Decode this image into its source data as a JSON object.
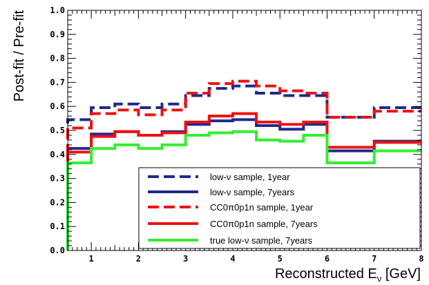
{
  "chart_data": {
    "type": "line",
    "title": "",
    "xlabel": "Reconstructed E",
    "xlabel_sub": "ν",
    "xlabel_unit": " [GeV]",
    "ylabel": "Post-fit / Pre-fit",
    "xlim": [
      0.5,
      8
    ],
    "ylim": [
      0.0,
      1.0
    ],
    "x_ticks": [
      "1",
      "2",
      "3",
      "4",
      "5",
      "6",
      "7",
      "8"
    ],
    "y_ticks": [
      "0.0",
      "0.1",
      "0.2",
      "0.3",
      "0.4",
      "0.5",
      "0.6",
      "0.7",
      "0.8",
      "0.9",
      "1.0"
    ],
    "bin_edges": [
      0.5,
      1.0,
      1.5,
      2.0,
      2.5,
      3.0,
      3.5,
      4.0,
      4.5,
      5.0,
      5.5,
      6.0,
      7.0,
      8.0
    ],
    "grid": false,
    "legend_position": "bottom-right",
    "series": [
      {
        "name": "low-ν sample, 1year",
        "color": "#1f2a8c",
        "dashed": true,
        "values": [
          0.545,
          0.595,
          0.61,
          0.595,
          0.61,
          0.645,
          0.675,
          0.685,
          0.655,
          0.645,
          0.645,
          0.555,
          0.595
        ]
      },
      {
        "name": "low-ν sample, 7years",
        "color": "#1f2a8c",
        "dashed": false,
        "values": [
          0.425,
          0.485,
          0.495,
          0.48,
          0.495,
          0.525,
          0.54,
          0.545,
          0.52,
          0.505,
          0.525,
          0.415,
          0.455
        ]
      },
      {
        "name": "CC0π0p1n sample, 1year",
        "color": "#ee1111",
        "dashed": true,
        "values": [
          0.51,
          0.57,
          0.585,
          0.565,
          0.585,
          0.655,
          0.695,
          0.705,
          0.685,
          0.665,
          0.655,
          0.555,
          0.58
        ]
      },
      {
        "name": "CC0π0p1n sample, 7years",
        "color": "#ee1111",
        "dashed": false,
        "values": [
          0.41,
          0.475,
          0.495,
          0.48,
          0.49,
          0.535,
          0.56,
          0.57,
          0.535,
          0.525,
          0.535,
          0.43,
          0.45
        ]
      },
      {
        "name": "true low-ν sample, 7years",
        "color": "#33ee33",
        "dashed": false,
        "values": [
          0.365,
          0.425,
          0.44,
          0.425,
          0.44,
          0.48,
          0.49,
          0.495,
          0.46,
          0.455,
          0.48,
          0.365,
          0.415
        ]
      }
    ]
  }
}
